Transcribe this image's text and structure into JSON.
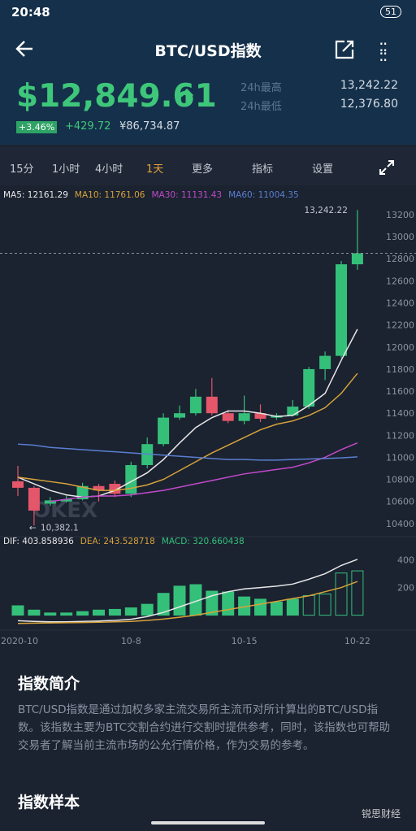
{
  "status_bar": {
    "time": "20:48",
    "battery": "51"
  },
  "header": {
    "title": "BTC/USD指数"
  },
  "ticker": {
    "price": "$12,849.61",
    "high_label": "24h最高",
    "high": "13,242.22",
    "low_label": "24h最低",
    "low": "12,376.80",
    "change_pct": "+3.46%",
    "change": "+429.72",
    "cny": "¥86,734.87"
  },
  "tabs": [
    "15分",
    "1小时",
    "4小时",
    "1天",
    "更多",
    "指标",
    "设置"
  ],
  "chart_data": [
    {
      "type": "candlestick",
      "watermark": "OKEX",
      "high_annotation": "13,242.22",
      "low_annotation": "10,382.1",
      "categories": [
        "2020-10",
        null,
        null,
        null,
        null,
        null,
        null,
        "10-8",
        null,
        null,
        null,
        null,
        null,
        null,
        "10-15",
        null,
        null,
        null,
        null,
        null,
        null,
        "10-22"
      ],
      "open": [
        10783,
        10724,
        10580,
        10600,
        10620,
        10740,
        10760,
        10670,
        10930,
        11120,
        11360,
        11400,
        11550,
        11400,
        11330,
        11400,
        11360,
        11380,
        11460,
        11800,
        11920,
        12750
      ],
      "high": [
        10923,
        10740,
        10640,
        10660,
        10770,
        10760,
        10790,
        10960,
        11180,
        11400,
        11470,
        11620,
        11720,
        11430,
        11560,
        11480,
        11400,
        11520,
        11820,
        11960,
        12780,
        13242.22
      ],
      "low": [
        10650,
        10382.1,
        10560,
        10590,
        10610,
        10600,
        10640,
        10640,
        10900,
        11100,
        11340,
        11380,
        11380,
        11310,
        11300,
        11320,
        11340,
        11370,
        11440,
        11700,
        11900,
        12700
      ],
      "close": [
        10724,
        10517,
        10610,
        10620,
        10740,
        10700,
        10670,
        10930,
        11120,
        11360,
        11400,
        11550,
        11400,
        11330,
        11400,
        11350,
        11380,
        11460,
        11800,
        11920,
        12750,
        12849.61
      ],
      "up_color": "#35c07a",
      "down_color": "#e4566a",
      "series": [
        {
          "name": "MA5: 12161.29",
          "color": "#e8e8e8",
          "values": [
            10820,
            10760,
            10700,
            10660,
            10640,
            10650,
            10700,
            10780,
            10860,
            10980,
            11130,
            11270,
            11360,
            11420,
            11420,
            11400,
            11370,
            11380,
            11470,
            11580,
            11880,
            12161.29
          ]
        },
        {
          "name": "MA10: 11761.06",
          "color": "#d6a33a",
          "values": [
            10820,
            10800,
            10780,
            10760,
            10730,
            10700,
            10700,
            10720,
            10750,
            10800,
            10880,
            10960,
            11040,
            11110,
            11180,
            11250,
            11300,
            11330,
            11380,
            11450,
            11580,
            11761.06
          ]
        },
        {
          "name": "MA30: 11131.43",
          "color": "#c04ac8",
          "values": [
            null,
            null,
            10600,
            10620,
            10640,
            10650,
            10650,
            10660,
            10680,
            10700,
            10730,
            10760,
            10790,
            10820,
            10850,
            10870,
            10890,
            10910,
            10950,
            11000,
            11070,
            11131.43
          ]
        },
        {
          "name": "MA60: 11004.35",
          "color": "#5a7fd0",
          "values": [
            11120,
            11110,
            11090,
            11080,
            11070,
            11060,
            11050,
            11040,
            11030,
            11020,
            11010,
            11000,
            10990,
            10980,
            10980,
            10975,
            10975,
            10980,
            10985,
            10990,
            10995,
            11004.35
          ]
        }
      ],
      "ylim": [
        10318,
        13303
      ],
      "yticks": [
        10400,
        10600,
        10800,
        11000,
        11200,
        11400,
        11600,
        11800,
        12000,
        12200,
        12400,
        12600,
        12800,
        13000,
        13200
      ]
    },
    {
      "type": "macd",
      "series": [
        {
          "name": "DIF: 403.858936",
          "color": "#e8e8e8",
          "values": [
            -40,
            -45,
            -48,
            -48,
            -45,
            -42,
            -38,
            -30,
            -10,
            20,
            60,
            100,
            140,
            170,
            190,
            200,
            210,
            225,
            260,
            300,
            360,
            403.858936
          ]
        },
        {
          "name": "DEA: 243.528718",
          "color": "#d6a33a",
          "values": [
            -60,
            -58,
            -56,
            -55,
            -53,
            -51,
            -48,
            -45,
            -38,
            -28,
            -15,
            0,
            20,
            40,
            60,
            80,
            100,
            120,
            140,
            170,
            200,
            243.528718
          ]
        },
        {
          "name": "MACD: 320.660438",
          "color": "#35c07a",
          "values": [
            68,
            37,
            16,
            16,
            26,
            37,
            42,
            53,
            79,
            158,
            210,
            221,
            174,
            168,
            132,
            116,
            95,
            116,
            142,
            153,
            305,
            320.660438
          ]
        }
      ],
      "ylim": [
        -79,
        474
      ],
      "yticks": [
        200,
        400
      ]
    }
  ],
  "intro": {
    "heading": "指数简介",
    "body": "BTC/USD指数是通过加权多家主流交易所主流币对所计算出的BTC/USD指数。该指数主要为BTC交割合约进行交割时提供参考，同时，该指数也可帮助交易者了解当前主流市场的公允行情价格，作为交易的参考。"
  },
  "samples": {
    "heading": "指数样本"
  },
  "watermark": "锐思财经"
}
